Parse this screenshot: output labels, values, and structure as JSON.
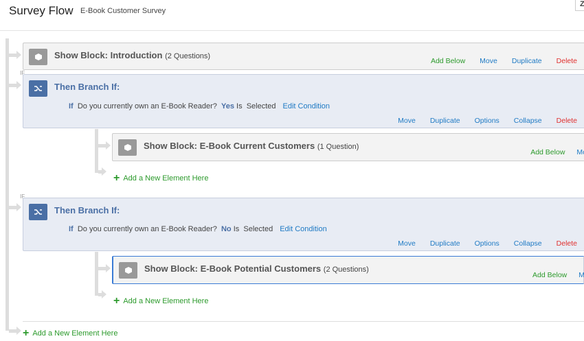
{
  "header": {
    "title": "Survey Flow",
    "subtitle": "E-Book Customer Survey",
    "corner_button": "Z"
  },
  "flow": {
    "block_intro": {
      "title": "Show Block: Introduction",
      "count": "(2 Questions)",
      "actions": [
        "Add Below",
        "Move",
        "Duplicate",
        "Delete"
      ]
    },
    "branch1": {
      "title": "Then Branch If:",
      "if": "If",
      "question": "Do you currently own an E-Book Reader?",
      "answer": "Yes",
      "is": "Is",
      "selected": "Selected",
      "edit": "Edit Condition",
      "actions": [
        "Move",
        "Duplicate",
        "Options",
        "Collapse",
        "Delete"
      ],
      "block": {
        "title": "Show Block: E-Book Current Customers",
        "count": "(1 Question)",
        "actions": [
          "Add Below",
          "Mo"
        ]
      },
      "add_new": "Add a New Element Here"
    },
    "branch2": {
      "title": "Then Branch If:",
      "if": "If",
      "question": "Do you currently own an E-Book Reader?",
      "answer": "No",
      "is": "Is",
      "selected": "Selected",
      "edit": "Edit Condition",
      "actions": [
        "Move",
        "Duplicate",
        "Options",
        "Collapse",
        "Delete"
      ],
      "block": {
        "title": "Show Block: E-Book Potential Customers",
        "count": "(2 Questions)",
        "actions": [
          "Add Below",
          "M"
        ]
      },
      "add_new": "Add a New Element Here"
    },
    "if_tag": "IF",
    "add_new": "Add a New Element Here"
  },
  "colors": {
    "link": "#1f7ac4",
    "add": "#2c9a2c",
    "delete": "#e0302f",
    "branch": "#4a6fa5"
  }
}
